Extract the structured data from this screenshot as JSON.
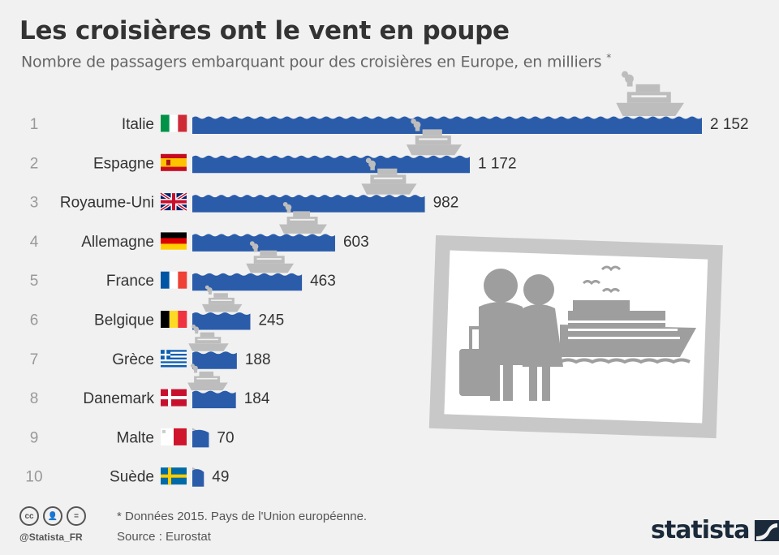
{
  "header": {
    "title": "Les croisières ont le vent en poupe",
    "subtitle": "Nombre de passagers embarquant pour des croisières en Europe, en milliers",
    "subtitle_mark": "*"
  },
  "chart_data": {
    "type": "bar",
    "orientation": "horizontal",
    "title": "Les croisières ont le vent en poupe",
    "subtitle": "Nombre de passagers embarquant pour des croisières en Europe, en milliers",
    "unit": "milliers",
    "categories": [
      "Italie",
      "Espagne",
      "Royaume-Uni",
      "Allemagne",
      "France",
      "Belgique",
      "Grèce",
      "Danemark",
      "Malte",
      "Suède"
    ],
    "ranks": [
      "1",
      "2",
      "3",
      "4",
      "5",
      "6",
      "7",
      "8",
      "9",
      "10"
    ],
    "values": [
      2152,
      1172,
      982,
      603,
      463,
      245,
      188,
      184,
      70,
      49
    ],
    "value_labels": [
      "2 152",
      "1 172",
      "982",
      "603",
      "463",
      "245",
      "188",
      "184",
      "70",
      "49"
    ],
    "bar_color": "#2a5caa"
  },
  "footer": {
    "note": "* Données 2015. Pays de l'Union européenne.",
    "source": "Source : Eurostat",
    "handle": "@Statista_FR",
    "brand": "statista"
  },
  "colors": {
    "bar": "#2a5caa",
    "ship": "#bfbfbf",
    "background": "#f1f1f1",
    "illustration": "#9a9a9a"
  }
}
